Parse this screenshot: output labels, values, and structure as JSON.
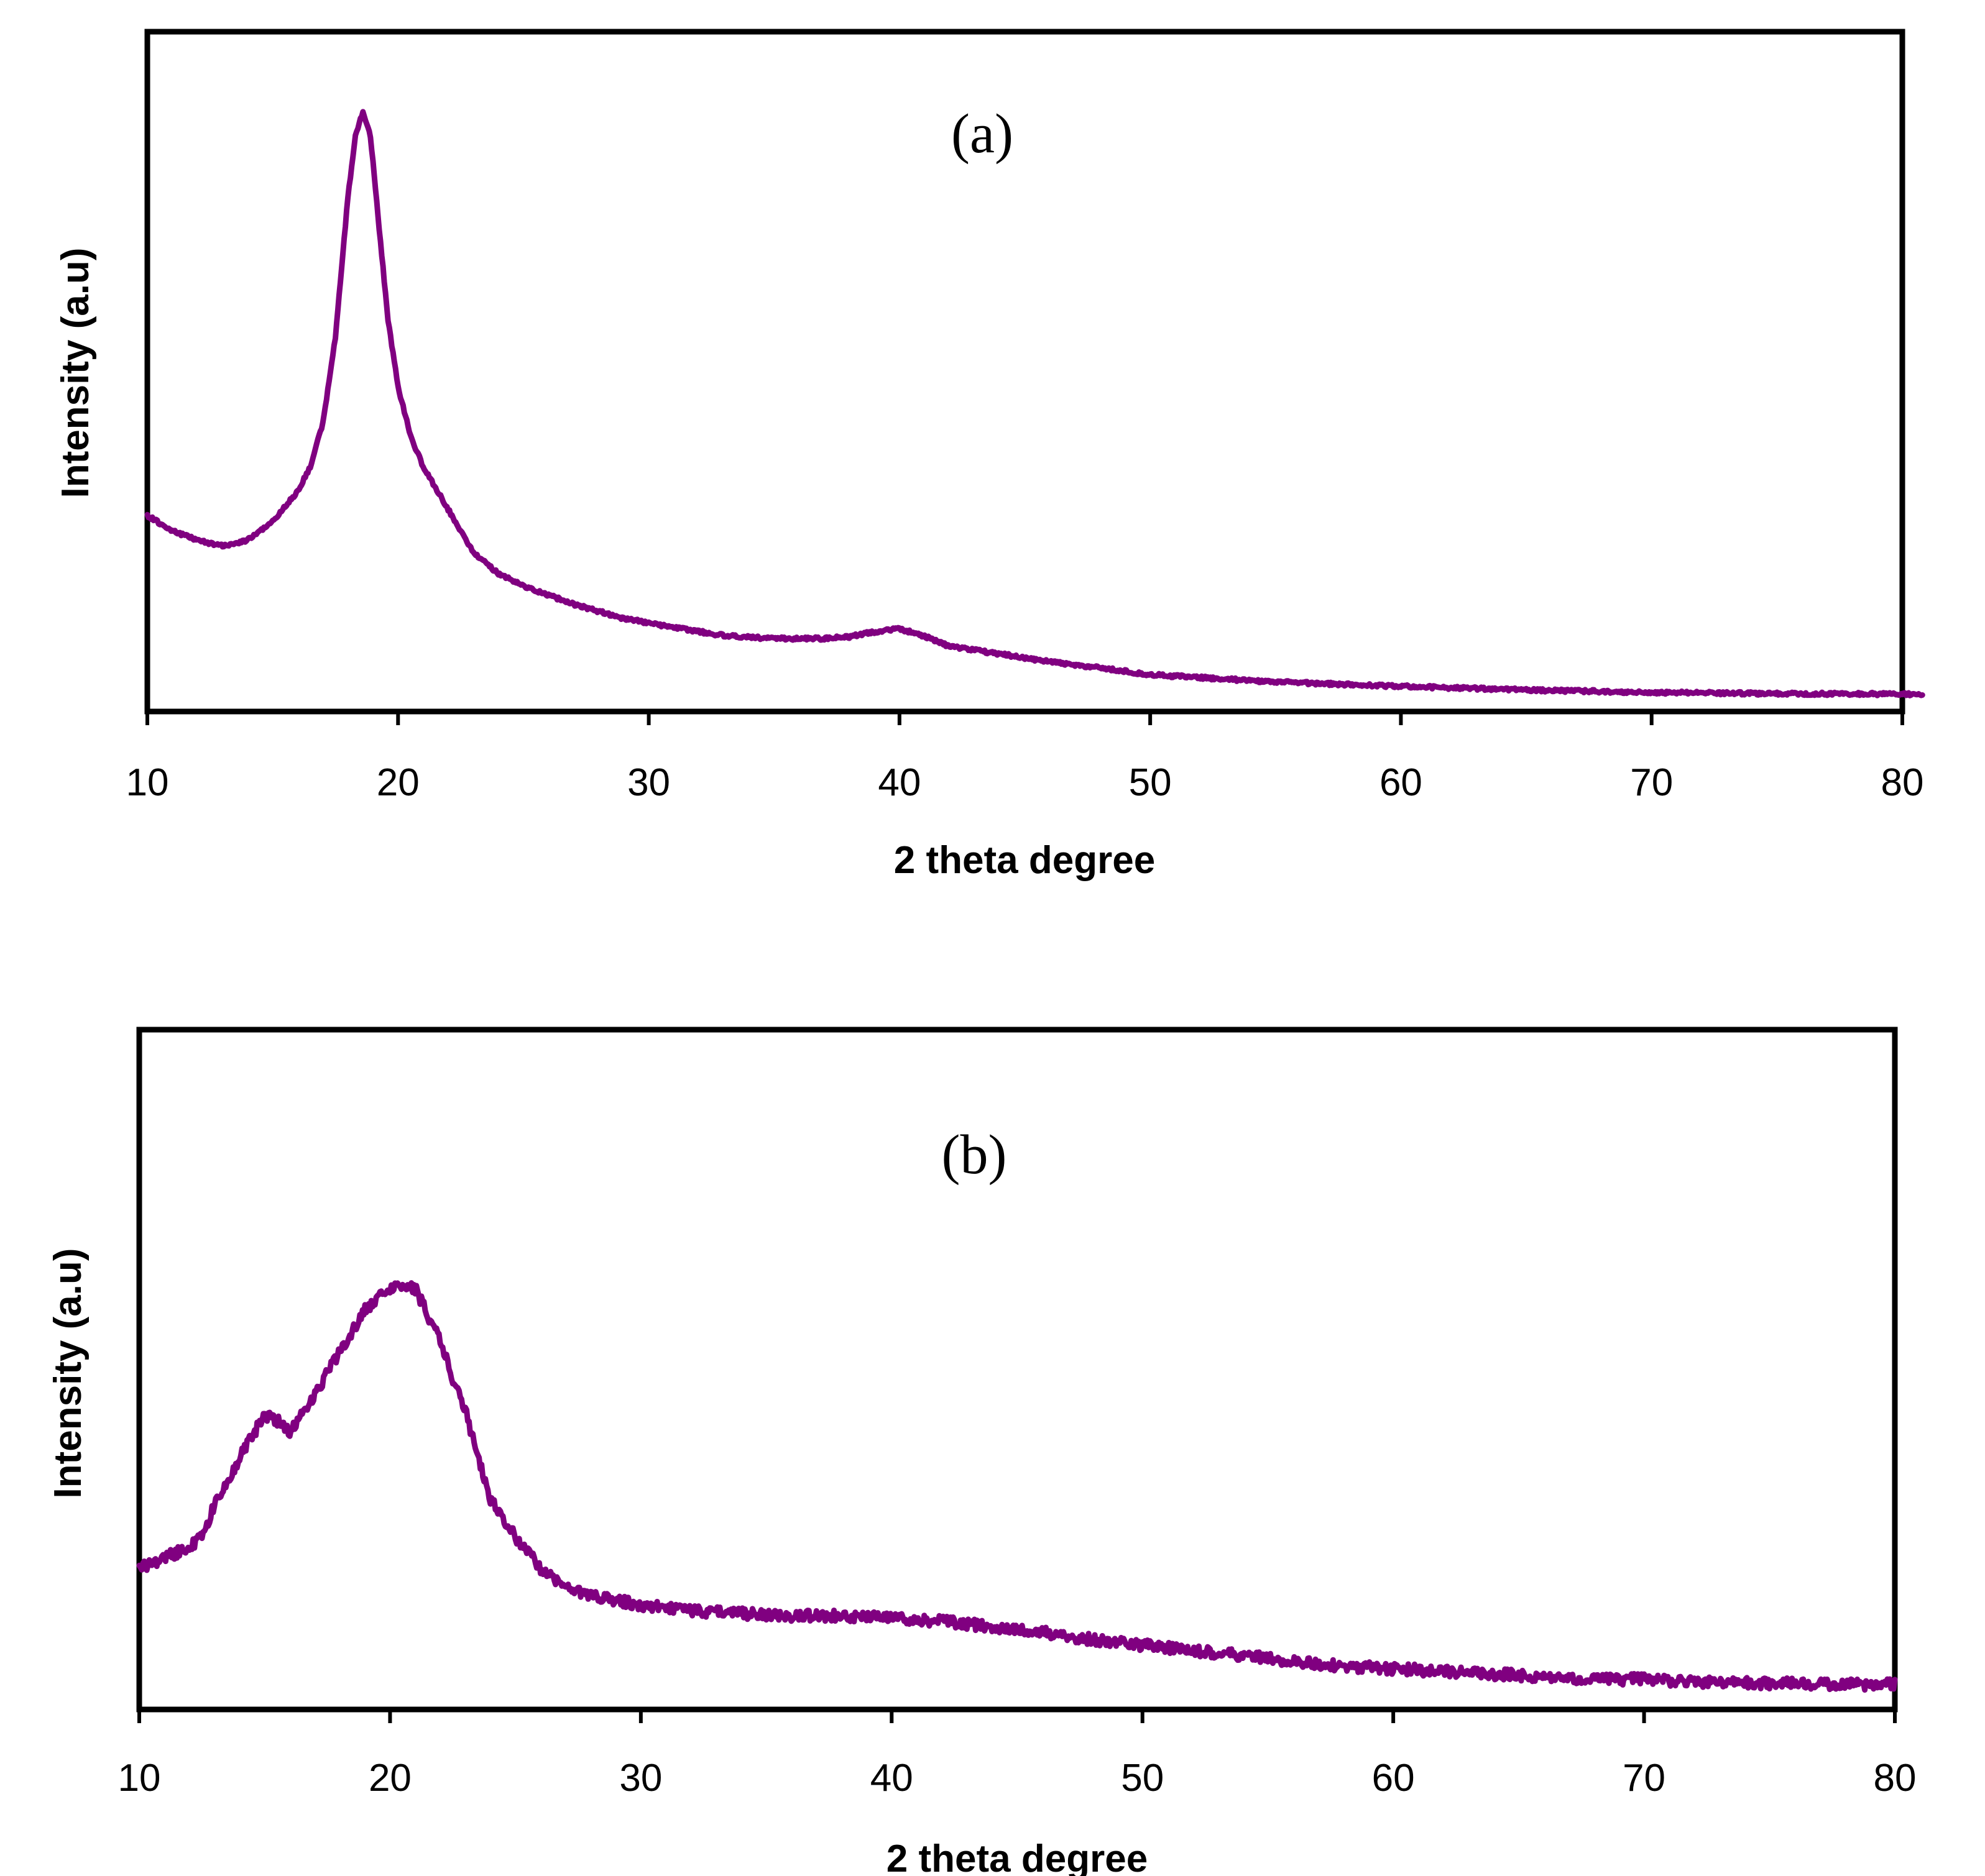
{
  "chart_data": [
    {
      "type": "line",
      "panel_label": "(a)",
      "xlabel": "2 theta degree",
      "ylabel": "Intensity (a.u)",
      "xlim": [
        10,
        80
      ],
      "ylim": [
        0,
        100
      ],
      "x_ticks": [
        10,
        20,
        30,
        40,
        50,
        60,
        70,
        80
      ],
      "x_tick_labels": [
        "10",
        "20",
        "30",
        "40",
        "50",
        "60",
        "70",
        "80"
      ],
      "grid": false,
      "series_color": "#800080",
      "series": [
        {
          "name": "(a)",
          "x": [
            10,
            11,
            12,
            13,
            14,
            15,
            16,
            16.5,
            17,
            17.5,
            18,
            18.3,
            18.6,
            18.9,
            19.2,
            19.6,
            20,
            20.5,
            21,
            22,
            23,
            24,
            25,
            27,
            29,
            31,
            33,
            35,
            37,
            38,
            39,
            40,
            41,
            42,
            44,
            46,
            48,
            50,
            55,
            60,
            65,
            70,
            75,
            80.8
          ],
          "values": [
            31,
            28.5,
            27,
            26,
            27,
            30,
            35,
            39,
            46,
            60,
            83,
            93,
            97,
            93,
            80,
            63,
            52,
            44,
            39,
            32,
            25,
            21.5,
            19.5,
            16.5,
            14.2,
            12.7,
            11.4,
            10.9,
            10.9,
            11.2,
            12,
            12.5,
            11.3,
            9.6,
            8.4,
            7.1,
            6.1,
            5,
            3.8,
            3.1,
            2.5,
            2.1,
            1.9,
            1.8
          ]
        }
      ]
    },
    {
      "type": "line",
      "panel_label": "(b)",
      "xlabel": "2 theta degree",
      "ylabel": "Intensity (a.u)",
      "xlim": [
        10,
        80
      ],
      "ylim": [
        0,
        100
      ],
      "x_ticks": [
        10,
        20,
        30,
        40,
        50,
        60,
        70,
        80
      ],
      "x_tick_labels": [
        "10",
        "20",
        "30",
        "40",
        "50",
        "60",
        "70",
        "80"
      ],
      "grid": false,
      "series_color": "#800080",
      "series": [
        {
          "name": "(b)",
          "x": [
            10,
            11,
            12,
            12.5,
            13,
            14,
            15,
            15.5,
            16,
            16.5,
            17,
            17.5,
            18,
            18.5,
            19,
            19.5,
            20,
            20.5,
            21,
            21.5,
            22,
            22.5,
            23,
            23.5,
            24,
            25,
            26,
            27,
            28,
            30,
            32,
            34,
            36,
            38,
            40,
            42,
            44,
            46,
            48,
            50,
            52,
            54,
            56,
            58,
            60,
            62,
            64,
            66,
            68,
            70,
            72,
            74,
            76,
            78,
            80
          ],
          "values": [
            26,
            28,
            30,
            32,
            38,
            47,
            55,
            54,
            52,
            55,
            59,
            63,
            67,
            71,
            75,
            77,
            79,
            80,
            79,
            74,
            69,
            62,
            56,
            47,
            39,
            32,
            26,
            22.5,
            21,
            19,
            18,
            17.5,
            17,
            17,
            16.5,
            16,
            15,
            14,
            12.5,
            11.5,
            10.5,
            9.5,
            8.5,
            7.5,
            7,
            6.5,
            6,
            5.5,
            5,
            5,
            4.5,
            4.3,
            4.2,
            4,
            4
          ]
        }
      ]
    }
  ]
}
